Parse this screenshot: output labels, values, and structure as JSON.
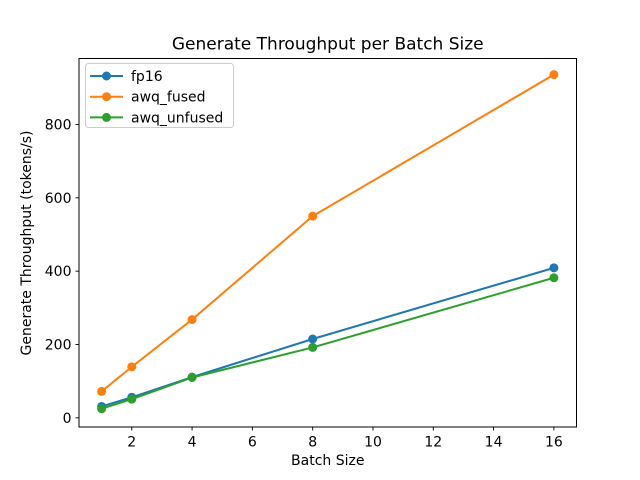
{
  "figure": {
    "background": "#ffffff",
    "text_color": "#000000",
    "spine_color": "#000000",
    "legend_border_color": "#cccccc"
  },
  "chart_data": {
    "type": "line",
    "title": "Generate Throughput per Batch Size",
    "xlabel": "Batch Size",
    "ylabel": "Generate Throughput (tokens/s)",
    "x": [
      1,
      2,
      4,
      8,
      16
    ],
    "series": [
      {
        "name": "fp16",
        "color": "#1f77b4",
        "values": [
          31,
          56,
          111,
          215,
          409
        ]
      },
      {
        "name": "awq_fused",
        "color": "#ff7f0e",
        "values": [
          72,
          139,
          268,
          550,
          936
        ]
      },
      {
        "name": "awq_unfused",
        "color": "#2ca02c",
        "values": [
          25,
          51,
          110,
          192,
          382
        ]
      }
    ],
    "xticks": [
      2,
      4,
      6,
      8,
      10,
      12,
      14,
      16
    ],
    "yticks": [
      0,
      200,
      400,
      600,
      800
    ],
    "xlim": [
      0.25,
      16.75
    ],
    "ylim": [
      -25,
      980
    ],
    "grid": false,
    "marker": "o",
    "legend_position": "upper left"
  }
}
